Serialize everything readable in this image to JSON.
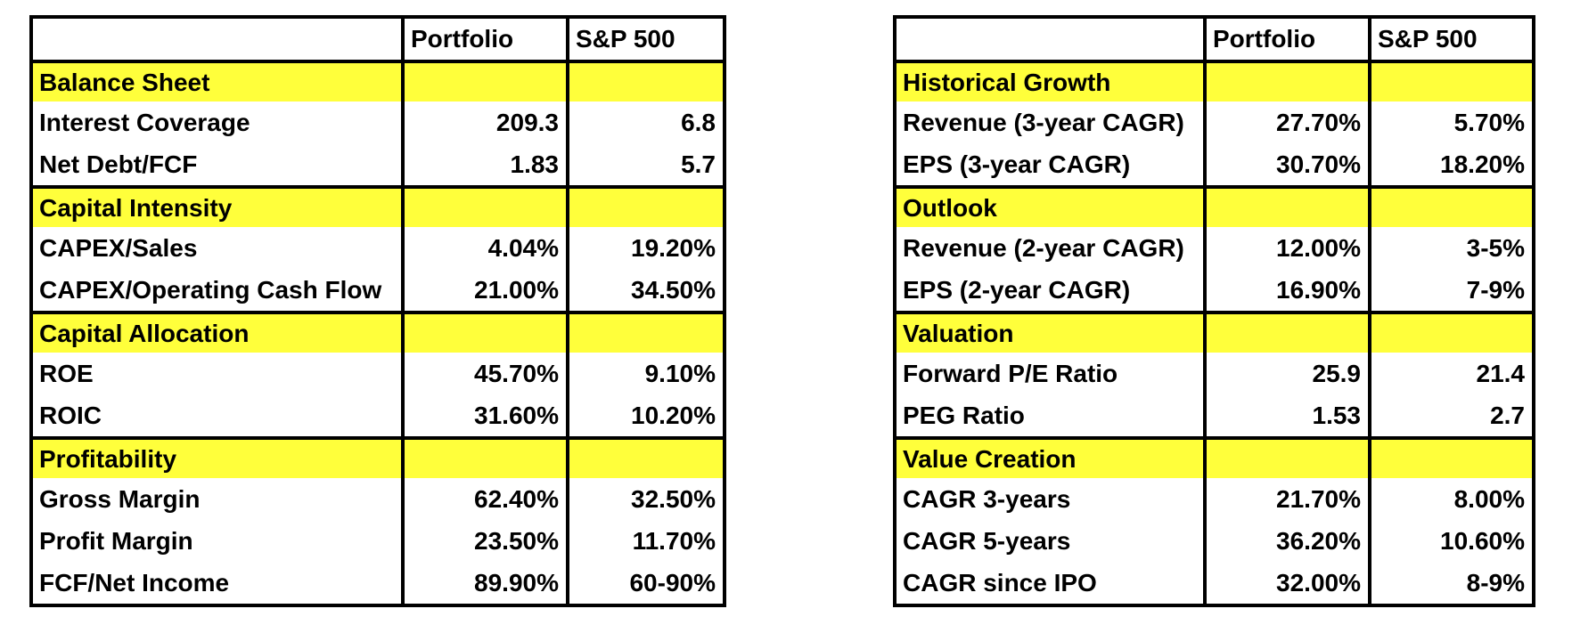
{
  "colors": {
    "section_fill": "#FFFF3B",
    "border": "#000000",
    "text": "#000000",
    "cell_background": "#FFFFFF"
  },
  "chart_data": [
    {
      "type": "table",
      "name": "fundamentals-comparison",
      "columns": [
        "",
        "Portfolio",
        "S&P 500"
      ],
      "sections": [
        {
          "header": "Balance Sheet",
          "rows": [
            {
              "label": "Interest Coverage",
              "portfolio": "209.3",
              "sp500": "6.8"
            },
            {
              "label": "Net Debt/FCF",
              "portfolio": "1.83",
              "sp500": "5.7"
            }
          ]
        },
        {
          "header": "Capital Intensity",
          "rows": [
            {
              "label": "CAPEX/Sales",
              "portfolio": "4.04%",
              "sp500": "19.20%"
            },
            {
              "label": "CAPEX/Operating Cash Flow",
              "portfolio": "21.00%",
              "sp500": "34.50%"
            }
          ]
        },
        {
          "header": "Capital Allocation",
          "rows": [
            {
              "label": "ROE",
              "portfolio": "45.70%",
              "sp500": "9.10%"
            },
            {
              "label": "ROIC",
              "portfolio": "31.60%",
              "sp500": "10.20%"
            }
          ]
        },
        {
          "header": "Profitability",
          "rows": [
            {
              "label": "Gross Margin",
              "portfolio": "62.40%",
              "sp500": "32.50%"
            },
            {
              "label": "Profit Margin",
              "portfolio": "23.50%",
              "sp500": "11.70%"
            },
            {
              "label": "FCF/Net Income",
              "portfolio": "89.90%",
              "sp500": "60-90%"
            }
          ]
        }
      ]
    },
    {
      "type": "table",
      "name": "growth-valuation-comparison",
      "columns": [
        "",
        "Portfolio",
        "S&P 500"
      ],
      "sections": [
        {
          "header": "Historical Growth",
          "rows": [
            {
              "label": "Revenue (3-year CAGR)",
              "portfolio": "27.70%",
              "sp500": "5.70%"
            },
            {
              "label": "EPS (3-year CAGR)",
              "portfolio": "30.70%",
              "sp500": "18.20%"
            }
          ]
        },
        {
          "header": "Outlook",
          "rows": [
            {
              "label": "Revenue (2-year CAGR)",
              "portfolio": "12.00%",
              "sp500": "3-5%"
            },
            {
              "label": "EPS (2-year CAGR)",
              "portfolio": "16.90%",
              "sp500": "7-9%"
            }
          ]
        },
        {
          "header": "Valuation",
          "rows": [
            {
              "label": "Forward P/E Ratio",
              "portfolio": "25.9",
              "sp500": "21.4"
            },
            {
              "label": "PEG Ratio",
              "portfolio": "1.53",
              "sp500": "2.7"
            }
          ]
        },
        {
          "header": "Value Creation",
          "rows": [
            {
              "label": "CAGR 3-years",
              "portfolio": "21.70%",
              "sp500": "8.00%"
            },
            {
              "label": "CAGR 5-years",
              "portfolio": "36.20%",
              "sp500": "10.60%"
            },
            {
              "label": "CAGR since IPO",
              "portfolio": "32.00%",
              "sp500": "8-9%"
            }
          ]
        }
      ]
    }
  ]
}
